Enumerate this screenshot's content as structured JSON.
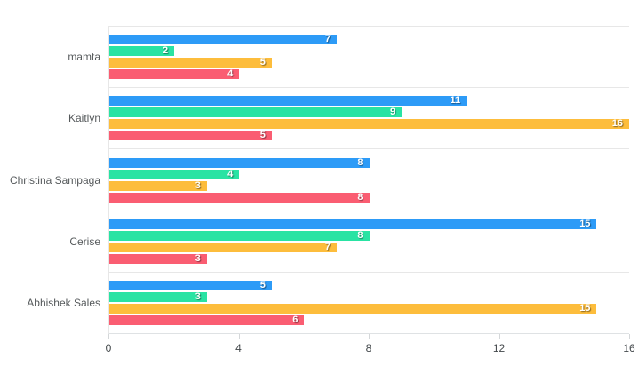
{
  "chart_data": {
    "type": "bar",
    "orientation": "horizontal",
    "title": "",
    "xlabel": "",
    "ylabel": "",
    "categories": [
      "mamta",
      "Kaitlyn",
      "Christina Sampaga",
      "Cerise",
      "Abhishek Sales"
    ],
    "series": [
      {
        "name": "series-blue",
        "color": "#2D9BF7",
        "values": [
          7,
          11,
          8,
          15,
          5
        ]
      },
      {
        "name": "series-green",
        "color": "#29E3A3",
        "values": [
          2,
          9,
          4,
          8,
          3
        ]
      },
      {
        "name": "series-yellow",
        "color": "#FDBD3C",
        "values": [
          5,
          16,
          3,
          7,
          15
        ]
      },
      {
        "name": "series-red",
        "color": "#FA5D72",
        "values": [
          4,
          5,
          8,
          3,
          6
        ]
      }
    ],
    "xlim": [
      0,
      16
    ],
    "xticks": [
      0,
      4,
      8,
      12,
      16
    ],
    "grid": "horizontal category separators only, no vertical gridlines",
    "legend": "none",
    "data_labels": "white bold value at inner end of each bar"
  },
  "colors": {
    "background": "#ffffff",
    "gridline": "#e7e7e7",
    "axis_line": "#dfe2e4",
    "tick_mark": "#d4d7d9",
    "category_label": "#55595b",
    "tick_label": "#42474a",
    "value_label": "#ffffff"
  }
}
